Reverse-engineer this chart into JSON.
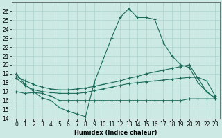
{
  "xlabel": "Humidex (Indice chaleur)",
  "ylabel": "",
  "xlim": [
    -0.5,
    23.5
  ],
  "ylim": [
    14,
    27
  ],
  "yticks": [
    14,
    15,
    16,
    17,
    18,
    19,
    20,
    21,
    22,
    23,
    24,
    25,
    26
  ],
  "xticks": [
    0,
    1,
    2,
    3,
    4,
    5,
    6,
    7,
    8,
    9,
    10,
    11,
    12,
    13,
    14,
    15,
    16,
    17,
    18,
    19,
    20,
    21,
    22,
    23
  ],
  "bg_color": "#cce9e4",
  "line_color": "#1a6b5a",
  "grid_color": "#aad4cc",
  "lines": [
    {
      "x": [
        0,
        1,
        2,
        3,
        4,
        5,
        6,
        7,
        8,
        9,
        10,
        11,
        12,
        13,
        14,
        15,
        16,
        17,
        18,
        19,
        20,
        21,
        22,
        23
      ],
      "y": [
        19.0,
        17.8,
        17.0,
        16.3,
        16.0,
        15.2,
        14.8,
        14.5,
        14.2,
        18.0,
        20.5,
        23.0,
        25.3,
        26.3,
        25.3,
        25.3,
        25.1,
        22.5,
        21.0,
        20.0,
        19.7,
        18.0,
        17.0,
        16.3
      ]
    },
    {
      "x": [
        0,
        1,
        2,
        3,
        4,
        5,
        6,
        7,
        8,
        9,
        10,
        11,
        12,
        13,
        14,
        15,
        16,
        17,
        18,
        19,
        20,
        21,
        22,
        23
      ],
      "y": [
        18.7,
        18.2,
        17.8,
        17.5,
        17.3,
        17.2,
        17.2,
        17.3,
        17.4,
        17.6,
        17.8,
        18.0,
        18.2,
        18.5,
        18.7,
        19.0,
        19.2,
        19.4,
        19.6,
        19.8,
        20.0,
        18.5,
        17.0,
        16.2
      ]
    },
    {
      "x": [
        0,
        1,
        2,
        3,
        4,
        5,
        6,
        7,
        8,
        9,
        10,
        11,
        12,
        13,
        14,
        15,
        16,
        17,
        18,
        19,
        20,
        21,
        22,
        23
      ],
      "y": [
        18.5,
        17.7,
        17.2,
        17.0,
        16.9,
        16.8,
        16.8,
        16.8,
        16.9,
        17.1,
        17.3,
        17.5,
        17.7,
        17.9,
        18.0,
        18.1,
        18.2,
        18.3,
        18.4,
        18.5,
        18.6,
        18.6,
        18.2,
        16.5
      ]
    },
    {
      "x": [
        0,
        1,
        2,
        3,
        4,
        5,
        6,
        7,
        8,
        9,
        10,
        11,
        12,
        13,
        14,
        15,
        16,
        17,
        18,
        19,
        20,
        21,
        22,
        23
      ],
      "y": [
        17.0,
        16.8,
        16.9,
        16.8,
        16.5,
        16.0,
        16.0,
        16.0,
        16.0,
        16.0,
        16.0,
        16.0,
        16.0,
        16.0,
        16.0,
        16.0,
        16.0,
        16.0,
        16.0,
        16.0,
        16.2,
        16.2,
        16.2,
        16.2
      ]
    }
  ]
}
